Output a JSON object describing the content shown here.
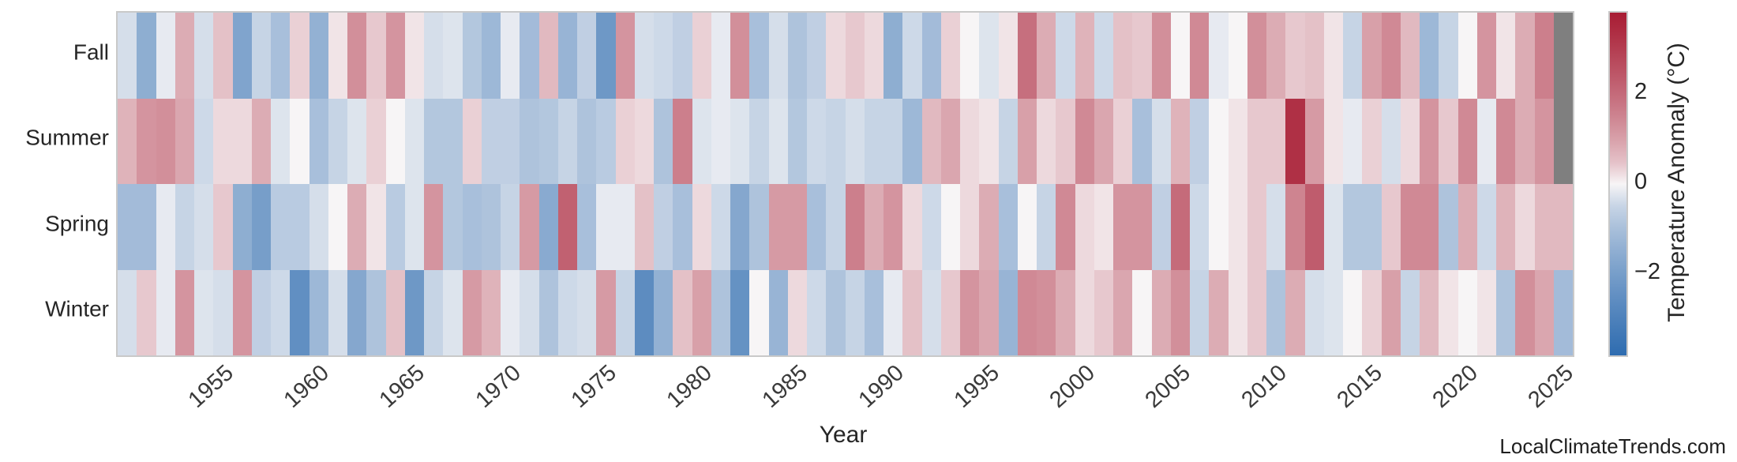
{
  "figure": {
    "background": "#ffffff",
    "watermark": "LocalClimateTrends.com"
  },
  "chart_data": {
    "type": "heatmap",
    "title": "",
    "xlabel": "Year",
    "ylabel": "",
    "legend_position": "right-colorbar",
    "grid": false,
    "rows": [
      "Fall",
      "Summer",
      "Spring",
      "Winter"
    ],
    "years": [
      1950,
      1951,
      1952,
      1953,
      1954,
      1955,
      1956,
      1957,
      1958,
      1959,
      1960,
      1961,
      1962,
      1963,
      1964,
      1965,
      1966,
      1967,
      1968,
      1969,
      1970,
      1971,
      1972,
      1973,
      1974,
      1975,
      1976,
      1977,
      1978,
      1979,
      1980,
      1981,
      1982,
      1983,
      1984,
      1985,
      1986,
      1987,
      1988,
      1989,
      1990,
      1991,
      1992,
      1993,
      1994,
      1995,
      1996,
      1997,
      1998,
      1999,
      2000,
      2001,
      2002,
      2003,
      2004,
      2005,
      2006,
      2007,
      2008,
      2009,
      2010,
      2011,
      2012,
      2013,
      2014,
      2015,
      2016,
      2017,
      2018,
      2019,
      2020,
      2021,
      2022,
      2023,
      2024,
      2025
    ],
    "x_tick_labels": [
      "1955",
      "1960",
      "1965",
      "1970",
      "1975",
      "1980",
      "1985",
      "1990",
      "1995",
      "2000",
      "2005",
      "2010",
      "2015",
      "2020",
      "2025"
    ],
    "series": [
      {
        "name": "Fall",
        "values": [
          -0.3,
          -1.5,
          -0.1,
          0.8,
          -0.3,
          0.5,
          -1.8,
          -0.5,
          -1.0,
          0.3,
          -1.4,
          0.1,
          1.3,
          0.4,
          1.2,
          0.1,
          -0.3,
          -0.2,
          -0.8,
          -1.2,
          -0.1,
          -1.1,
          0.6,
          -1.3,
          -0.6,
          -2.2,
          1.2,
          -0.3,
          -0.4,
          -0.6,
          0.3,
          -0.1,
          1.3,
          -1.0,
          -0.3,
          -0.9,
          -0.6,
          0.2,
          0.4,
          0.2,
          -1.5,
          -0.4,
          -1.1,
          0.3,
          0.0,
          -0.2,
          0.1,
          1.9,
          0.8,
          -0.4,
          0.7,
          -0.4,
          0.5,
          0.4,
          1.3,
          0.0,
          1.4,
          -0.1,
          0.0,
          1.3,
          0.8,
          0.4,
          0.5,
          0.1,
          -0.5,
          1.0,
          1.4,
          0.6,
          -1.2,
          -0.5,
          0.0,
          1.2,
          0.1,
          0.8,
          1.6,
          null
        ]
      },
      {
        "name": "Summer",
        "values": [
          0.7,
          1.2,
          1.3,
          0.9,
          -0.4,
          0.2,
          0.2,
          0.8,
          -0.2,
          0.0,
          -1.0,
          -0.5,
          -0.2,
          0.3,
          0.0,
          -0.2,
          -0.8,
          -0.8,
          0.3,
          -0.6,
          -0.6,
          -0.9,
          -0.8,
          -0.5,
          -0.9,
          -0.7,
          0.3,
          0.2,
          -0.9,
          1.6,
          -0.2,
          -0.1,
          -0.2,
          -0.5,
          -0.2,
          -0.8,
          -0.4,
          -0.5,
          -0.3,
          -0.5,
          -0.5,
          -1.2,
          0.6,
          0.9,
          0.2,
          0.1,
          -0.5,
          1.0,
          0.2,
          0.4,
          1.4,
          0.9,
          0.3,
          -1.0,
          -0.3,
          0.7,
          -0.6,
          0.0,
          0.1,
          0.4,
          0.4,
          3.3,
          1.1,
          0.1,
          -0.1,
          0.3,
          -0.3,
          0.2,
          1.2,
          0.4,
          1.4,
          -0.1,
          1.4,
          0.8,
          1.2,
          null
        ]
      },
      {
        "name": "Spring",
        "values": [
          -1.1,
          -1.1,
          -0.1,
          -0.5,
          -0.3,
          0.4,
          -1.5,
          -2.0,
          -0.7,
          -0.7,
          -0.3,
          0.0,
          0.8,
          0.1,
          -0.7,
          -0.2,
          1.2,
          -0.8,
          -1.0,
          -0.9,
          -0.5,
          1.1,
          -1.6,
          2.2,
          -1.0,
          -0.1,
          -0.1,
          0.5,
          -0.6,
          -1.0,
          0.2,
          -0.4,
          -1.7,
          -0.9,
          1.1,
          1.1,
          -1.0,
          -0.5,
          1.6,
          0.8,
          1.2,
          0.2,
          -0.4,
          0.0,
          0.2,
          0.8,
          -1.0,
          0.0,
          -0.5,
          1.4,
          0.2,
          0.1,
          1.2,
          1.2,
          -0.6,
          2.0,
          -0.4,
          0.0,
          0.1,
          0.4,
          -0.3,
          1.5,
          2.3,
          -0.2,
          -0.8,
          -0.8,
          0.4,
          1.4,
          1.4,
          -0.9,
          0.8,
          -0.4,
          0.7,
          0.2,
          0.6,
          0.6
        ]
      },
      {
        "name": "Winter",
        "values": [
          -0.3,
          0.4,
          -0.1,
          1.2,
          -0.2,
          -0.3,
          1.2,
          -0.6,
          -0.4,
          -2.5,
          -1.2,
          -0.3,
          -1.7,
          -0.9,
          0.5,
          -2.2,
          -0.5,
          -0.2,
          1.1,
          0.7,
          -0.1,
          -0.3,
          -0.9,
          -0.4,
          -0.3,
          1.1,
          -0.5,
          -2.6,
          -1.4,
          0.5,
          1.0,
          -0.9,
          -2.4,
          0.0,
          -1.3,
          0.2,
          -0.4,
          -0.9,
          -0.5,
          -1.0,
          -0.1,
          0.5,
          -0.3,
          0.4,
          1.2,
          0.9,
          -1.3,
          1.4,
          1.3,
          0.8,
          0.2,
          0.4,
          0.9,
          0.0,
          0.8,
          1.3,
          -0.5,
          0.8,
          0.1,
          0.4,
          -0.9,
          0.8,
          -0.3,
          -0.2,
          0.0,
          0.3,
          1.0,
          -0.5,
          0.6,
          0.1,
          0.0,
          0.1,
          -0.9,
          1.3,
          0.9,
          -1.1
        ]
      }
    ],
    "colorbar": {
      "label": "Temperature Anomaly (°C)",
      "ticks": [
        "2",
        "0",
        "−2"
      ],
      "tick_values": [
        2,
        0,
        -2
      ],
      "vmin": -3.8,
      "vmax": 3.8,
      "color_positive_end": "#a81c33",
      "color_zero": "#f7f5f6",
      "color_negative_end": "#2e6cb0"
    },
    "nan_color": "#7f7f7f"
  }
}
